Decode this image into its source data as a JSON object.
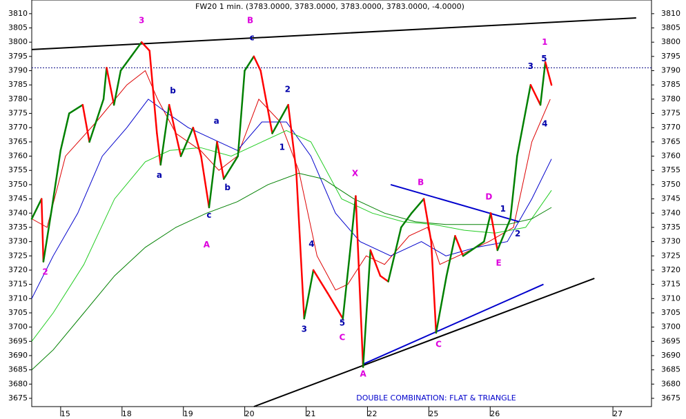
{
  "chart_data": {
    "type": "line",
    "title": "FW20 1 min. (3783.0000, 3783.0000, 3783.0000, 3783.0000, -4.0000)",
    "caption": "DOUBLE COMBINATION: FLAT & TRIANGLE",
    "caption_color": "#0000cc",
    "xlim": [
      0.45,
      10.55
    ],
    "ylim": [
      3672.1,
      3814.8
    ],
    "xticks": [
      {
        "value": 1,
        "label": "15"
      },
      {
        "value": 2,
        "label": "18"
      },
      {
        "value": 3,
        "label": "19"
      },
      {
        "value": 4,
        "label": "20"
      },
      {
        "value": 5,
        "label": "21"
      },
      {
        "value": 6,
        "label": "22"
      },
      {
        "value": 7,
        "label": "25"
      },
      {
        "value": 8,
        "label": "26"
      },
      {
        "value": 10,
        "label": "27"
      }
    ],
    "yticks": [
      3675,
      3680,
      3685,
      3690,
      3695,
      3700,
      3705,
      3710,
      3715,
      3720,
      3725,
      3730,
      3735,
      3740,
      3745,
      3750,
      3755,
      3760,
      3765,
      3770,
      3775,
      3780,
      3785,
      3790,
      3795,
      3800,
      3805,
      3810
    ],
    "price": {
      "up_color": "#008000",
      "down_color": "#ff0000",
      "x": [
        0.45,
        0.61,
        0.64,
        0.78,
        0.92,
        1.06,
        1.28,
        1.39,
        1.62,
        1.67,
        1.79,
        1.9,
        2.07,
        2.24,
        2.37,
        2.49,
        2.55,
        2.69,
        2.88,
        3.08,
        3.21,
        3.34,
        3.47,
        3.58,
        3.81,
        3.92,
        4.07,
        4.18,
        4.37,
        4.63,
        4.76,
        4.89,
        5.04,
        5.27,
        5.52,
        5.63,
        5.73,
        5.85,
        5.97,
        6.13,
        6.26,
        6.47,
        6.64,
        6.84,
        6.96,
        7.04,
        7.21,
        7.35,
        7.48,
        7.82,
        7.93,
        8.04,
        8.25,
        8.36,
        8.58,
        8.74,
        8.82,
        8.92
      ],
      "values": [
        3738,
        3745,
        3723,
        3742,
        3762,
        3775,
        3778,
        3765,
        3780,
        3791,
        3778,
        3790,
        3795,
        3800,
        3797,
        3768,
        3757,
        3778,
        3760,
        3770,
        3760,
        3742,
        3765,
        3752,
        3760,
        3790,
        3795,
        3790,
        3768,
        3778,
        3755,
        3703,
        3720,
        3712,
        3703,
        3725,
        3746,
        3686,
        3727,
        3718,
        3716,
        3735,
        3740,
        3745,
        3730,
        3698,
        3718,
        3732,
        3725,
        3730,
        3740,
        3727,
        3738,
        3760,
        3785,
        3778,
        3793,
        3785
      ]
    },
    "series": [
      {
        "color": "#dd0000",
        "x": [
          0.45,
          0.7,
          1.0,
          1.5,
          2.0,
          2.3,
          2.5,
          2.8,
          3.2,
          3.5,
          3.8,
          4.15,
          4.5,
          4.8,
          5.1,
          5.4,
          5.6,
          5.9,
          6.2,
          6.6,
          6.9,
          7.1,
          7.4,
          7.9,
          8.3,
          8.6,
          8.9
        ],
        "values": [
          3738,
          3735,
          3760,
          3772,
          3785,
          3790,
          3780,
          3768,
          3762,
          3755,
          3760,
          3780,
          3772,
          3755,
          3725,
          3713,
          3715,
          3725,
          3722,
          3732,
          3735,
          3722,
          3725,
          3730,
          3735,
          3765,
          3780
        ]
      },
      {
        "color": "#0000cc",
        "x": [
          0.45,
          0.8,
          1.2,
          1.6,
          2.0,
          2.35,
          2.6,
          3.0,
          3.5,
          3.8,
          4.2,
          4.6,
          5.0,
          5.4,
          5.8,
          6.3,
          6.8,
          7.2,
          7.7,
          8.2,
          8.6,
          8.92
        ],
        "values": [
          3710,
          3725,
          3740,
          3760,
          3770,
          3780,
          3776,
          3770,
          3765,
          3762,
          3772,
          3772,
          3760,
          3740,
          3730,
          3725,
          3730,
          3725,
          3728,
          3730,
          3745,
          3759
        ]
      },
      {
        "color": "#22cc22",
        "x": [
          0.45,
          0.8,
          1.3,
          1.8,
          2.3,
          2.7,
          3.2,
          3.7,
          4.2,
          4.6,
          5.0,
          5.5,
          6.0,
          6.5,
          7.0,
          7.5,
          8.0,
          8.5,
          8.92
        ],
        "values": [
          3695,
          3705,
          3722,
          3745,
          3758,
          3762,
          3763,
          3760,
          3765,
          3769,
          3765,
          3745,
          3740,
          3737,
          3736,
          3734,
          3733,
          3735,
          3748
        ]
      },
      {
        "color": "#008000",
        "x": [
          0.45,
          0.8,
          1.3,
          1.8,
          2.3,
          2.8,
          3.3,
          3.8,
          4.3,
          4.8,
          5.2,
          5.7,
          6.2,
          6.7,
          7.2,
          7.7,
          8.2,
          8.6,
          8.92
        ],
        "values": [
          3685,
          3692,
          3705,
          3718,
          3728,
          3735,
          3740,
          3744,
          3750,
          3754,
          3752,
          3745,
          3740,
          3737,
          3736,
          3736,
          3736,
          3738,
          3742
        ]
      }
    ],
    "trend_lines": [
      {
        "color": "#000000",
        "x": [
          0.45,
          10.3
        ],
        "values": [
          3797.4,
          3808.5
        ]
      },
      {
        "color": "#000000",
        "x": [
          4.07,
          9.62
        ],
        "values": [
          3672.1,
          3717.1
        ]
      },
      {
        "color": "#0000cc",
        "x": [
          6.3,
          8.39
        ],
        "values": [
          3750,
          3737
        ]
      },
      {
        "color": "#0000cc",
        "x": [
          5.85,
          8.79
        ],
        "values": [
          3687,
          3715
        ]
      }
    ],
    "hline": {
      "value": 3791,
      "color": "#000080"
    },
    "annotations": [
      {
        "text": "3",
        "color": "#dd00dd",
        "x": 2.24,
        "y": 3807.6
      },
      {
        "text": "B",
        "color": "#dd00dd",
        "x": 4.01,
        "y": 3807.6
      },
      {
        "text": "2",
        "color": "#dd00dd",
        "x": 0.67,
        "y": 3719.3
      },
      {
        "text": "A",
        "color": "#dd00dd",
        "x": 3.3,
        "y": 3728.8
      },
      {
        "text": "X",
        "color": "#dd00dd",
        "x": 5.72,
        "y": 3753.9
      },
      {
        "text": "C",
        "color": "#dd00dd",
        "x": 5.51,
        "y": 3696.3
      },
      {
        "text": "A",
        "color": "#dd00dd",
        "x": 5.85,
        "y": 3683.5
      },
      {
        "text": "B",
        "color": "#dd00dd",
        "x": 6.79,
        "y": 3750.7
      },
      {
        "text": "C",
        "color": "#dd00dd",
        "x": 7.08,
        "y": 3693.9
      },
      {
        "text": "D",
        "color": "#dd00dd",
        "x": 7.9,
        "y": 3745.6
      },
      {
        "text": "E",
        "color": "#dd00dd",
        "x": 8.06,
        "y": 3722.4
      },
      {
        "text": "1",
        "color": "#dd00dd",
        "x": 8.81,
        "y": 3799.9
      },
      {
        "text": "c",
        "color": "#0000aa",
        "x": 4.04,
        "y": 3801.5
      },
      {
        "text": "b",
        "color": "#0000aa",
        "x": 2.75,
        "y": 3782.9
      },
      {
        "text": "a",
        "color": "#0000aa",
        "x": 2.53,
        "y": 3753.2
      },
      {
        "text": "a",
        "color": "#0000aa",
        "x": 3.46,
        "y": 3772.2
      },
      {
        "text": "b",
        "color": "#0000aa",
        "x": 3.64,
        "y": 3748.9
      },
      {
        "text": "c",
        "color": "#0000aa",
        "x": 3.34,
        "y": 3739.2
      },
      {
        "text": "2",
        "color": "#0000aa",
        "x": 4.62,
        "y": 3783.4
      },
      {
        "text": "1",
        "color": "#0000aa",
        "x": 4.53,
        "y": 3763.1
      },
      {
        "text": "4",
        "color": "#0000aa",
        "x": 5.01,
        "y": 3729.1
      },
      {
        "text": "3",
        "color": "#0000aa",
        "x": 4.89,
        "y": 3699.2
      },
      {
        "text": "5",
        "color": "#0000aa",
        "x": 5.51,
        "y": 3701.4
      },
      {
        "text": "1",
        "color": "#0000aa",
        "x": 8.13,
        "y": 3741.4
      },
      {
        "text": "2",
        "color": "#0000aa",
        "x": 8.37,
        "y": 3732.7
      },
      {
        "text": "3",
        "color": "#0000aa",
        "x": 8.58,
        "y": 3791.4
      },
      {
        "text": "5",
        "color": "#0000aa",
        "x": 8.8,
        "y": 3794.1
      },
      {
        "text": "4",
        "color": "#0000aa",
        "x": 8.81,
        "y": 3771.3
      }
    ]
  }
}
